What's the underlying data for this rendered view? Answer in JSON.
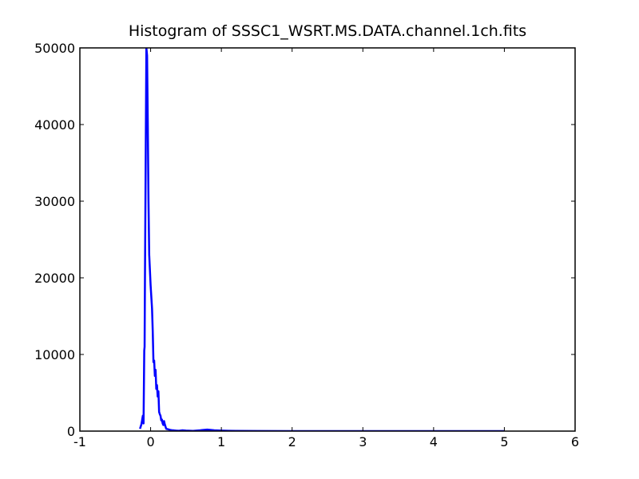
{
  "chart_data": {
    "type": "line",
    "title": "Histogram of SSSC1_WSRT.MS.DATA.channel.1ch.fits",
    "xlabel": "",
    "ylabel": "",
    "xlim": [
      -1,
      6
    ],
    "ylim": [
      0,
      50000
    ],
    "x_ticks": [
      "-1",
      "0",
      "1",
      "2",
      "3",
      "4",
      "5",
      "6"
    ],
    "y_ticks": [
      "0",
      "10000",
      "20000",
      "30000",
      "40000",
      "50000"
    ],
    "grid": false,
    "legend": "none",
    "line_color": "#0000ff",
    "series": [
      {
        "x": [
          -0.15,
          -0.13,
          -0.11,
          -0.1,
          -0.09,
          -0.085,
          -0.08,
          -0.07,
          -0.06,
          -0.05,
          -0.04,
          -0.03,
          -0.02,
          -0.01,
          0.0,
          0.02,
          0.03,
          0.04,
          0.05,
          0.06,
          0.07,
          0.08,
          0.09,
          0.1,
          0.11,
          0.12,
          0.13,
          0.14,
          0.15,
          0.16,
          0.17,
          0.18,
          0.19,
          0.2,
          0.22,
          0.24,
          0.26,
          0.28,
          0.3,
          0.32,
          0.34,
          0.36,
          0.4,
          0.45,
          0.5,
          0.6,
          0.7,
          0.8,
          0.9,
          1.0,
          1.1,
          1.2,
          1.5,
          2.0,
          3.0,
          4.0,
          5.0
        ],
        "y": [
          300,
          900,
          2000,
          1000,
          10500,
          11000,
          20000,
          35000,
          50000,
          49000,
          40000,
          30000,
          23000,
          21000,
          19000,
          16000,
          13000,
          9000,
          9200,
          7200,
          8000,
          5500,
          6000,
          4500,
          5200,
          2500,
          2200,
          2000,
          1400,
          1500,
          1000,
          800,
          1300,
          900,
          300,
          250,
          200,
          150,
          120,
          100,
          80,
          60,
          40,
          100,
          60,
          30,
          100,
          200,
          100,
          60,
          40,
          20,
          10,
          5,
          2,
          1,
          1
        ]
      }
    ]
  }
}
